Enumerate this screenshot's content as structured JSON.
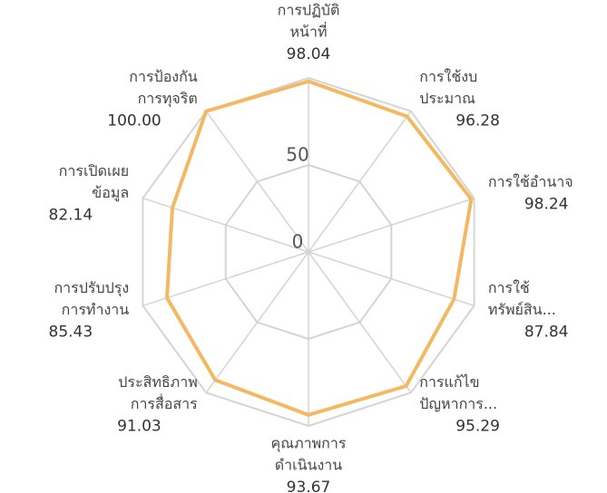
{
  "chart_data": {
    "type": "radar",
    "categories": [
      [
        "การปฏิบัติ",
        "หน้าที่"
      ],
      [
        "การใช้งบ",
        "ประมาณ"
      ],
      [
        "การใช้อำนาจ"
      ],
      [
        "การใช้",
        "ทรัพย์สิน..."
      ],
      [
        "การแก้ไข",
        "ปัญหาการ..."
      ],
      [
        "คุณภาพการ",
        "ดำเนินงาน"
      ],
      [
        "ประสิทธิภาพ",
        "การสื่อสาร"
      ],
      [
        "การปรับปรุง",
        "การทำงาน"
      ],
      [
        "การเปิดเผย",
        "ข้อมูล"
      ],
      [
        "การป้องกัน",
        "การทุจริต"
      ]
    ],
    "values": [
      98.04,
      96.28,
      98.24,
      87.84,
      95.29,
      93.67,
      91.03,
      85.43,
      82.14,
      100
    ],
    "value_labels": [
      "98.04",
      "96.28",
      "98.24",
      "87.84",
      "95.29",
      "93.67",
      "91.03",
      "85.43",
      "82.14",
      "100.00"
    ],
    "color": "#f5b862",
    "ylim": [
      0,
      100
    ],
    "yticks": [
      0,
      50
    ],
    "grid": true
  }
}
